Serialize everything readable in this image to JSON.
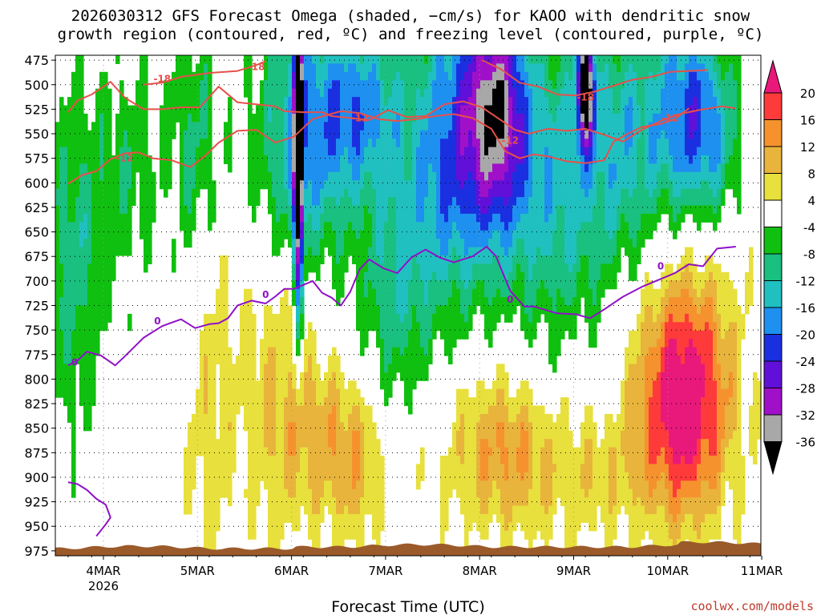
{
  "title": {
    "line1": "2026030312 GFS Forecast Omega (shaded, −cm/s) for KAOO with dendritic snow",
    "line2": "growth region (contoured, red, ºC) and freezing level (contoured, purple, ºC)"
  },
  "watermark": "coolwx.com/models",
  "colors": {
    "dendritic_contour": "#e8504a",
    "freezing_contour": "#9010c8",
    "ground": "#9b5a2a"
  },
  "chart_data": {
    "type": "heatmap",
    "title": "2026030312 GFS Forecast Omega (shaded, −cm/s) for KAOO with dendritic snow growth region (contoured, red, ºC) and freezing level (contoured, purple, ºC)",
    "xlabel": "Forecast Time (UTC)",
    "ylabel": "",
    "x_axis": {
      "ticks": [
        "4MAR",
        "5MAR",
        "6MAR",
        "7MAR",
        "8MAR",
        "9MAR",
        "10MAR",
        "11MAR"
      ],
      "sublabel": "2026",
      "xlim": [
        "2026-03-03 15Z",
        "2026-03-11 00Z"
      ]
    },
    "y_axis": {
      "ticks": [
        475,
        500,
        525,
        550,
        575,
        600,
        625,
        650,
        675,
        700,
        725,
        750,
        775,
        800,
        825,
        850,
        875,
        900,
        925,
        950,
        975
      ],
      "ylim": [
        975,
        475
      ],
      "unit": "hPa",
      "inverted": true
    },
    "grid": "dotted",
    "colorbar": {
      "ticks": [
        20,
        16,
        12,
        8,
        4,
        -4,
        -8,
        -12,
        -16,
        -20,
        -24,
        -28,
        -32,
        -36
      ],
      "bins": [
        {
          "range": [
            20,
            99
          ],
          "color": "#e8197a"
        },
        {
          "range": [
            16,
            20
          ],
          "color": "#ff3a3a"
        },
        {
          "range": [
            12,
            16
          ],
          "color": "#f5922e"
        },
        {
          "range": [
            8,
            12
          ],
          "color": "#e8b43c"
        },
        {
          "range": [
            4,
            8
          ],
          "color": "#e8e03c"
        },
        {
          "range": [
            -4,
            4
          ],
          "color": "#ffffff"
        },
        {
          "range": [
            -8,
            -4
          ],
          "color": "#10c010"
        },
        {
          "range": [
            -12,
            -8
          ],
          "color": "#19c080"
        },
        {
          "range": [
            -16,
            -12
          ],
          "color": "#20c0c0"
        },
        {
          "range": [
            -20,
            -16
          ],
          "color": "#1e90f0"
        },
        {
          "range": [
            -24,
            -20
          ],
          "color": "#1a30e0"
        },
        {
          "range": [
            -28,
            -24
          ],
          "color": "#6010d8"
        },
        {
          "range": [
            -32,
            -28
          ],
          "color": "#a010c8"
        },
        {
          "range": [
            -36,
            -32
          ],
          "color": "#a8a8a8"
        },
        {
          "range": [
            -99,
            -36
          ],
          "color": "#000000"
        }
      ]
    },
    "contours": {
      "dendritic_minus12": {
        "label": "-12",
        "upper_branch": [
          [
            0,
            528
          ],
          [
            0.1,
            516
          ],
          [
            0.25,
            510
          ],
          [
            0.45,
            497
          ],
          [
            0.6,
            513
          ],
          [
            0.8,
            525
          ],
          [
            1.0,
            525
          ],
          [
            1.2,
            523
          ],
          [
            1.4,
            523
          ],
          [
            1.6,
            502
          ],
          [
            1.8,
            518
          ],
          [
            2.0,
            520
          ],
          [
            2.2,
            522
          ],
          [
            2.3,
            527
          ],
          [
            2.5,
            528
          ],
          [
            2.7,
            528
          ],
          [
            2.8,
            532
          ],
          [
            3.0,
            534
          ],
          [
            3.2,
            536
          ],
          [
            3.4,
            526
          ],
          [
            3.6,
            533
          ],
          [
            3.8,
            532
          ],
          [
            4.0,
            520
          ],
          [
            4.2,
            517
          ],
          [
            4.4,
            523
          ],
          [
            4.6,
            536
          ],
          [
            4.75,
            546
          ],
          [
            4.9,
            550
          ],
          [
            5.1,
            545
          ],
          [
            5.3,
            547
          ],
          [
            5.5,
            545
          ],
          [
            5.7,
            551
          ],
          [
            5.9,
            558
          ],
          [
            6.1,
            546
          ],
          [
            6.3,
            537
          ],
          [
            6.5,
            530
          ],
          [
            6.7,
            526
          ],
          [
            6.95,
            522
          ],
          [
            7.1,
            524
          ]
        ],
        "lower_branch": [
          [
            0,
            601
          ],
          [
            0.15,
            592
          ],
          [
            0.3,
            588
          ],
          [
            0.45,
            576
          ],
          [
            0.6,
            570
          ],
          [
            0.75,
            569
          ],
          [
            0.9,
            575
          ],
          [
            1.1,
            577
          ],
          [
            1.3,
            584
          ],
          [
            1.45,
            573
          ],
          [
            1.6,
            559
          ],
          [
            1.8,
            547
          ],
          [
            2.0,
            546
          ],
          [
            2.2,
            559
          ],
          [
            2.4,
            553
          ],
          [
            2.6,
            535
          ],
          [
            2.9,
            527
          ],
          [
            3.1,
            529
          ],
          [
            3.3,
            535
          ],
          [
            3.5,
            537
          ],
          [
            3.7,
            535
          ],
          [
            3.9,
            532
          ],
          [
            4.1,
            530
          ],
          [
            4.3,
            534
          ],
          [
            4.5,
            545
          ],
          [
            4.65,
            568
          ],
          [
            4.8,
            575
          ],
          [
            4.95,
            571
          ],
          [
            5.1,
            573
          ],
          [
            5.3,
            578
          ],
          [
            5.5,
            580
          ],
          [
            5.7,
            577
          ],
          [
            5.8,
            558
          ],
          [
            5.95,
            550
          ],
          [
            6.1,
            543
          ],
          [
            6.3,
            540
          ],
          [
            6.45,
            535
          ],
          [
            6.6,
            524
          ]
        ],
        "labels_at": [
          [
            0.6,
            575
          ],
          [
            3.1,
            534
          ],
          [
            4.7,
            557
          ],
          [
            6.4,
            534
          ]
        ]
      },
      "dendritic_minus18": {
        "label": "-18",
        "segments": [
          [
            [
              0.8,
              500
            ],
            [
              1.0,
              498
            ],
            [
              1.2,
              492
            ],
            [
              1.5,
              488
            ],
            [
              1.8,
              486
            ],
            [
              2.0,
              480
            ],
            [
              2.1,
              476
            ]
          ],
          [
            [
              4.4,
              475
            ],
            [
              4.6,
              484
            ],
            [
              4.8,
              498
            ],
            [
              5.0,
              502
            ],
            [
              5.2,
              510
            ],
            [
              5.4,
              511
            ],
            [
              5.6,
              507
            ],
            [
              5.8,
              501
            ],
            [
              6.0,
              495
            ],
            [
              6.2,
              492
            ],
            [
              6.4,
              487
            ],
            [
              6.6,
              486
            ],
            [
              6.8,
              485
            ]
          ]
        ],
        "labels_at": [
          [
            1.0,
            494
          ],
          [
            2.0,
            482
          ],
          [
            5.5,
            513
          ]
        ]
      },
      "freezing_level": {
        "label": "0",
        "upper": [
          [
            0,
            786
          ],
          [
            0.1,
            781
          ],
          [
            0.2,
            772
          ],
          [
            0.35,
            776
          ],
          [
            0.5,
            786
          ],
          [
            0.6,
            777
          ],
          [
            0.8,
            758
          ],
          [
            1.0,
            746
          ],
          [
            1.2,
            739
          ],
          [
            1.35,
            748
          ],
          [
            1.5,
            744
          ],
          [
            1.6,
            743
          ],
          [
            1.7,
            738
          ],
          [
            1.8,
            725
          ],
          [
            1.95,
            720
          ],
          [
            2.1,
            723
          ],
          [
            2.2,
            716
          ],
          [
            2.3,
            708
          ],
          [
            2.4,
            708
          ],
          [
            2.6,
            700
          ],
          [
            2.7,
            712
          ],
          [
            2.8,
            717
          ],
          [
            2.9,
            725
          ],
          [
            3.0,
            711
          ],
          [
            3.1,
            688
          ],
          [
            3.2,
            678
          ],
          [
            3.35,
            687
          ],
          [
            3.5,
            692
          ],
          [
            3.65,
            676
          ],
          [
            3.8,
            668
          ],
          [
            3.95,
            676
          ],
          [
            4.1,
            681
          ],
          [
            4.3,
            675
          ],
          [
            4.45,
            665
          ],
          [
            4.55,
            675
          ],
          [
            4.7,
            710
          ],
          [
            4.85,
            726
          ],
          [
            4.95,
            726
          ],
          [
            5.2,
            733
          ],
          [
            5.4,
            734
          ],
          [
            5.55,
            738
          ],
          [
            5.7,
            729
          ],
          [
            5.9,
            716
          ],
          [
            6.1,
            706
          ],
          [
            6.3,
            698
          ],
          [
            6.45,
            692
          ],
          [
            6.6,
            683
          ],
          [
            6.75,
            685
          ],
          [
            6.9,
            667
          ],
          [
            7.1,
            665
          ]
        ],
        "lower": [
          [
            0,
            905
          ],
          [
            0.1,
            907
          ],
          [
            0.2,
            913
          ],
          [
            0.3,
            922
          ],
          [
            0.4,
            928
          ],
          [
            0.45,
            941
          ],
          [
            0.4,
            948
          ],
          [
            0.3,
            960
          ]
        ],
        "labels_at": [
          [
            0.07,
            783
          ],
          [
            0.95,
            741
          ],
          [
            2.1,
            714
          ],
          [
            4.7,
            719
          ],
          [
            6.3,
            685
          ]
        ]
      }
    },
    "ground": "brown terrain band along the 975 hPa floor"
  }
}
